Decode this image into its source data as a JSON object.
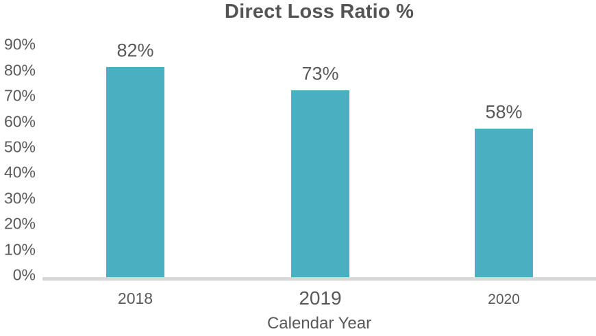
{
  "chart_data": {
    "type": "bar",
    "title": "Direct Loss Ratio %",
    "xlabel": "Calendar Year",
    "ylabel": "",
    "categories": [
      "2018",
      "2019",
      "2020"
    ],
    "values": [
      82,
      73,
      58
    ],
    "data_labels": [
      "82%",
      "73%",
      "58%"
    ],
    "ylim": [
      0,
      90
    ],
    "ytick_step": 10,
    "ytick_labels": [
      "0%",
      "10%",
      "20%",
      "30%",
      "40%",
      "50%",
      "60%",
      "70%",
      "80%",
      "90%"
    ],
    "grid": false,
    "legend": "none",
    "colors": {
      "bar": "#4AB0C1",
      "axis_line": "#D8D8D8",
      "text": "#595959",
      "title": "#545454"
    }
  }
}
